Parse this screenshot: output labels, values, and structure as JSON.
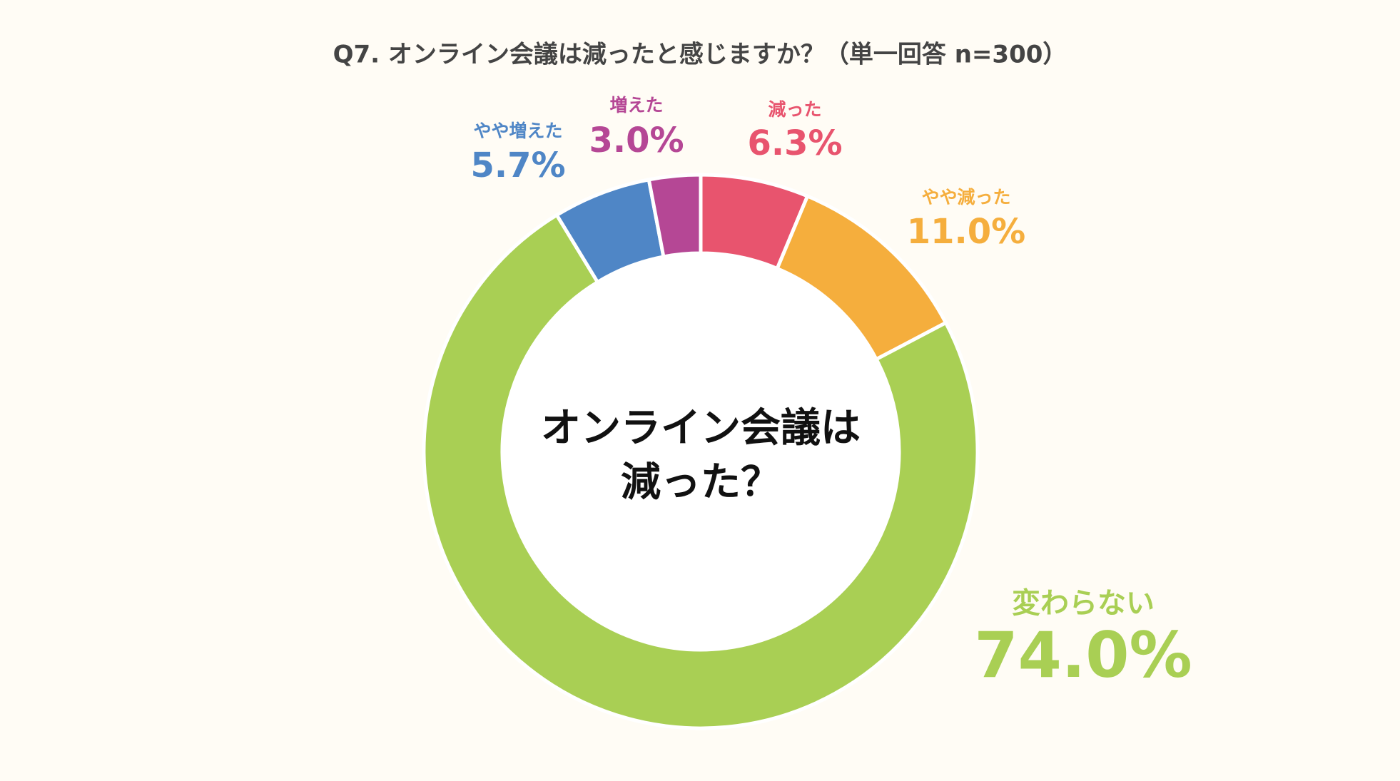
{
  "chart_data": {
    "type": "donut",
    "title": "Q7. オンライン会議は減ったと感じますか？（単一回答 n=300）",
    "center_text": [
      "オンライン会議は",
      "減った？"
    ],
    "categories": [
      "減った",
      "やや減った",
      "変わらない",
      "やや増えた",
      "増えた"
    ],
    "values": [
      6.3,
      11.0,
      74.0,
      5.7,
      3.0
    ],
    "value_labels": [
      "6.3%",
      "11.0%",
      "74.0%",
      "5.7%",
      "3.0%"
    ],
    "colors": [
      "#e8546e",
      "#f5ae3d",
      "#a9cf54",
      "#4f86c6",
      "#b54795"
    ]
  }
}
